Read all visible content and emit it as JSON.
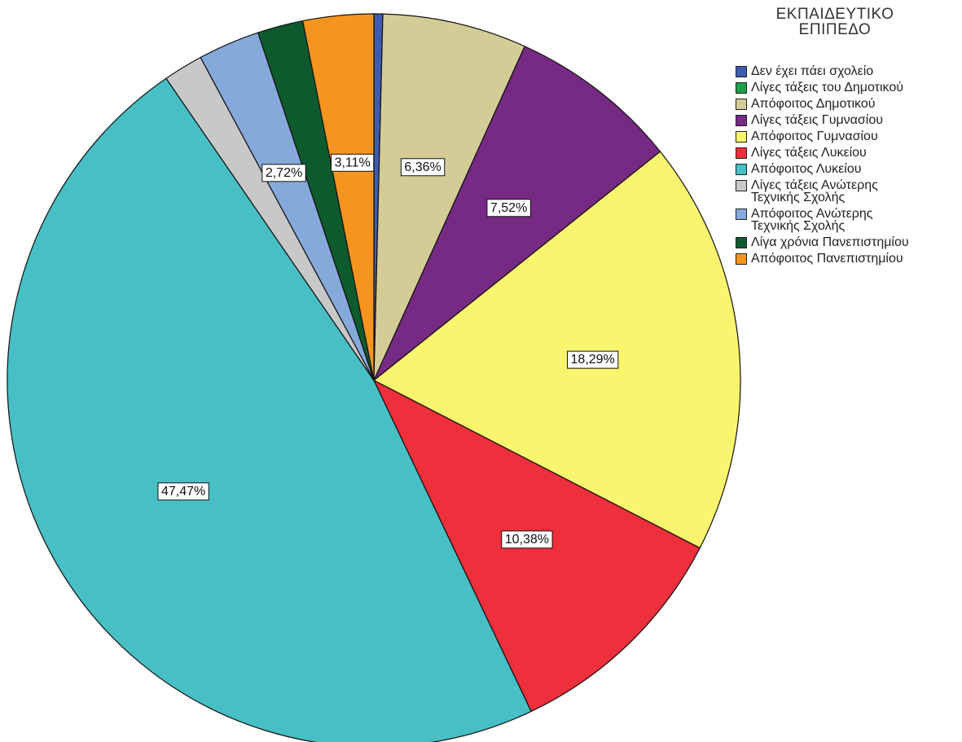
{
  "chart_data": {
    "type": "pie",
    "title": "",
    "legend_title": [
      "ΕΚΠΑΙΔΕΥΤΙΚΟ",
      "ΕΠΙΠΕΔΟ"
    ],
    "legend_placement": "top-right",
    "start_angle_deg": 0,
    "direction": "clockwise",
    "slices": [
      {
        "label": "Δεν έχει πάει σχολείο",
        "value": 0.39,
        "color": "#3D5BB0",
        "data_label": ""
      },
      {
        "label": "Λίγες τάξεις του Δημοτικού",
        "value": 0.0,
        "color": "#1E9E4A",
        "data_label": ""
      },
      {
        "label": "Απόφοιτος Δημοτικού",
        "value": 6.36,
        "color": "#D3CC96",
        "data_label": "6,36%"
      },
      {
        "label": "Λίγες τάξεις Γυμνασίου",
        "value": 7.52,
        "color": "#762A83",
        "data_label": "7,52%"
      },
      {
        "label": "Απόφοιτος Γυμνασίου",
        "value": 18.29,
        "color": "#FAF56E",
        "data_label": "18,29%"
      },
      {
        "label": "Λίγες τάξεις Λυκείου",
        "value": 10.38,
        "color": "#EE2F3C",
        "data_label": "10,38%"
      },
      {
        "label": "Απόφοιτος Λυκείου",
        "value": 47.47,
        "color": "#47BFC5",
        "data_label": "47,47%"
      },
      {
        "label": "Λίγες τάξεις Ανώτερης\nΤεχνικής Σχολής",
        "value": 1.75,
        "color": "#C8C8C8",
        "data_label": ""
      },
      {
        "label": "Απόφοιτος Ανώτερης\nΤεχνικής Σχολής",
        "value": 2.72,
        "color": "#86A9DB",
        "data_label": "2,72%"
      },
      {
        "label": "Λίγα χρόνια Πανεπιστημίου",
        "value": 2.01,
        "color": "#0C5A2E",
        "data_label": ""
      },
      {
        "label": "Απόφοιτος Πανεπιστημίου",
        "value": 3.11,
        "color": "#F5951F",
        "data_label": "3,11%"
      }
    ]
  }
}
